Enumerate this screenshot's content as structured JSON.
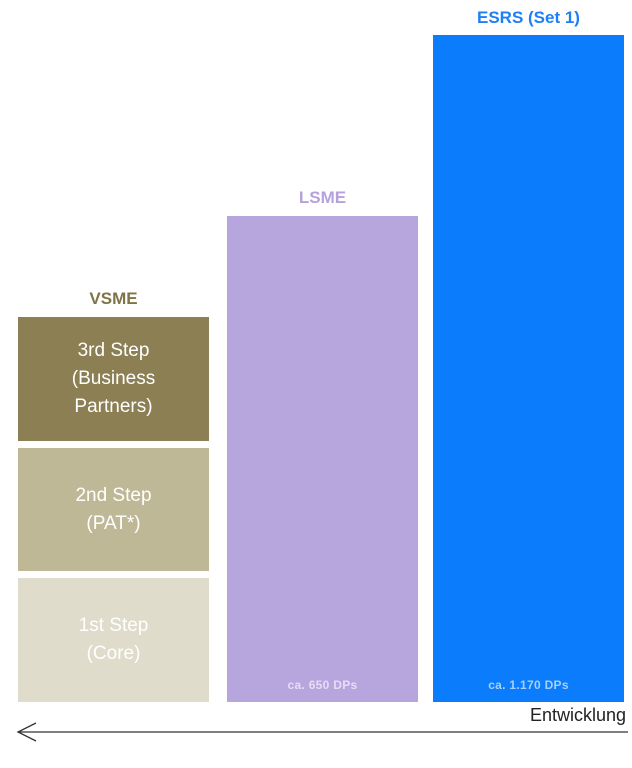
{
  "columns": {
    "vsme": {
      "title": "VSME",
      "title_color": "#7f7349",
      "steps": [
        {
          "label": "3rd Step\n(Business\nPartners)",
          "bg": "#8c7f53",
          "fg": "#ffffff"
        },
        {
          "label": "2nd Step\n(PAT*)",
          "bg": "#bfb897",
          "fg": "#ffffff"
        },
        {
          "label": "1st Step\n(Core)",
          "bg": "#dfdccb",
          "fg": "#ffffff"
        }
      ]
    },
    "lsme": {
      "title": "LSME",
      "title_color": "#b5a2dc",
      "bg": "#b7a5dd",
      "dp_label": "ca. 650 DPs",
      "dp_color": "#e6ddf5"
    },
    "esrs": {
      "title": "ESRS (Set 1)",
      "title_color": "#1f7ff5",
      "bg": "#0a7cfc",
      "dp_label": "ca. 1.170 DPs",
      "dp_color": "#a9cffc"
    }
  },
  "arrow": {
    "label": "Entwicklung",
    "direction": "left",
    "color": "#333333"
  }
}
